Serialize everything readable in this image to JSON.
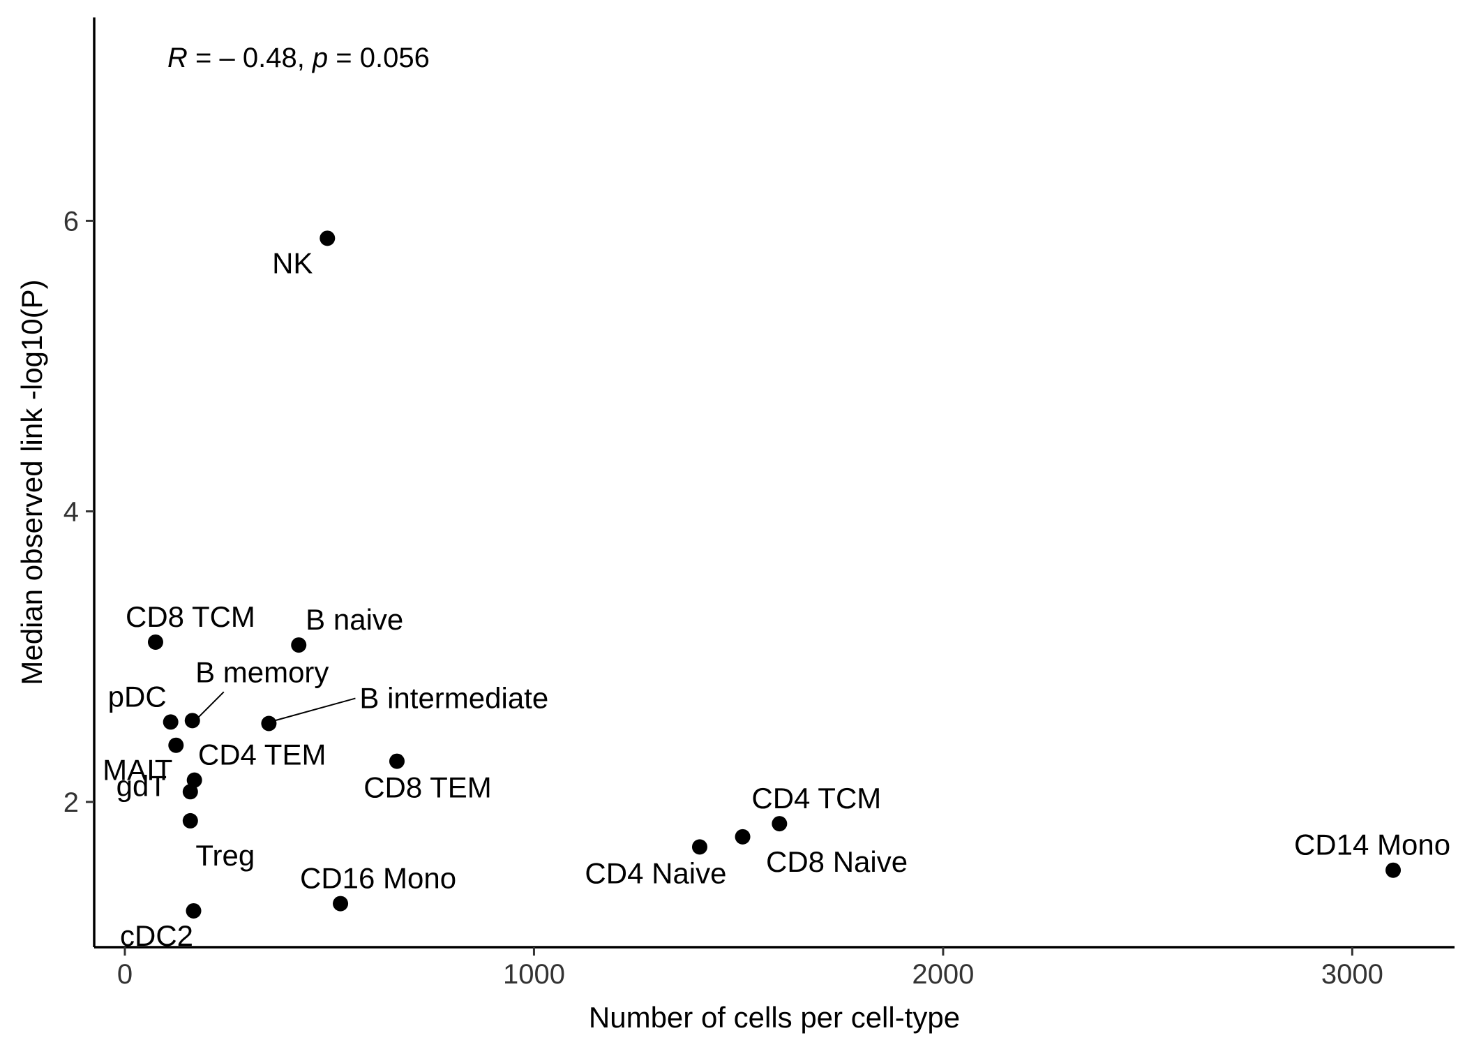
{
  "chart_data": {
    "type": "scatter",
    "xlabel": "Number of cells per cell-type",
    "ylabel": "Median observed link -log10(P)",
    "xlim": [
      -75,
      3250
    ],
    "ylim": [
      1.0,
      7.4
    ],
    "x_ticks": [
      0,
      1000,
      2000,
      3000
    ],
    "y_ticks": [
      2,
      4,
      6
    ],
    "grid": false,
    "annotation": {
      "r_symbol": "R",
      "r_text": " = – 0.48, ",
      "p_symbol": "p",
      "p_text": " = 0.056"
    },
    "point_color": "#000000",
    "points": [
      {
        "label": "NK",
        "x": 495,
        "y": 5.88
      },
      {
        "label": "CD8 TCM",
        "x": 75,
        "y": 3.1
      },
      {
        "label": "B naive",
        "x": 425,
        "y": 3.08
      },
      {
        "label": "B memory",
        "x": 165,
        "y": 2.56
      },
      {
        "label": "pDC",
        "x": 112,
        "y": 2.55
      },
      {
        "label": "B intermediate",
        "x": 352,
        "y": 2.54
      },
      {
        "label": "MAIT",
        "x": 125,
        "y": 2.39
      },
      {
        "label": "CD8 TEM",
        "x": 665,
        "y": 2.28
      },
      {
        "label": "CD4 TEM",
        "x": 170,
        "y": 2.15
      },
      {
        "label": "gdT",
        "x": 160,
        "y": 2.07
      },
      {
        "label": "Treg",
        "x": 160,
        "y": 1.87
      },
      {
        "label": "CD4 TCM",
        "x": 1600,
        "y": 1.85
      },
      {
        "label": "CD8 Naive",
        "x": 1510,
        "y": 1.76
      },
      {
        "label": "CD4 Naive",
        "x": 1405,
        "y": 1.69
      },
      {
        "label": "CD14 Mono",
        "x": 3100,
        "y": 1.53
      },
      {
        "label": "CD16 Mono",
        "x": 527,
        "y": 1.3
      },
      {
        "label": "cDC2",
        "x": 168,
        "y": 1.25
      }
    ]
  }
}
